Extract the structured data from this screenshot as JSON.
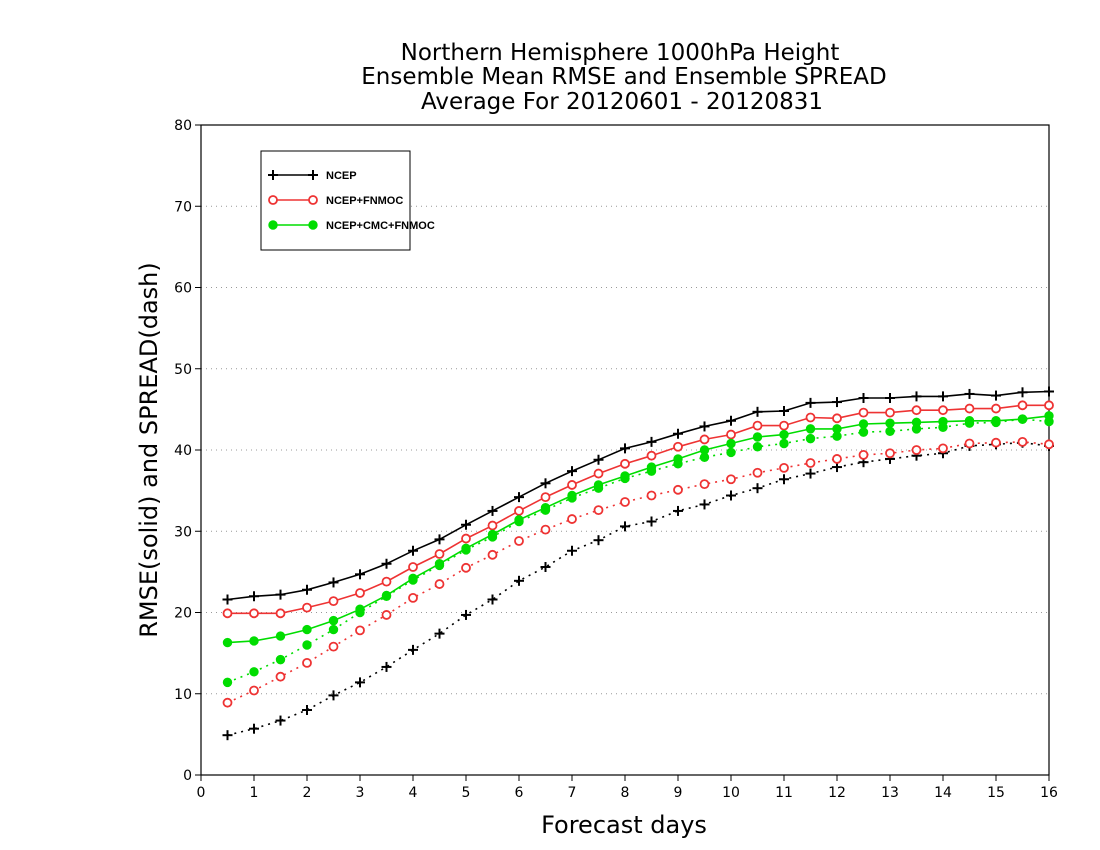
{
  "chart_data": {
    "type": "line",
    "title_lines": [
      "Northern Hemisphere 1000hPa Height",
      "Ensemble Mean RMSE and Ensemble SPREAD",
      "Average For 20120601 - 20120831"
    ],
    "xlabel": "Forecast days",
    "ylabel": "RMSE(solid) and SPREAD(dash)",
    "xlim": [
      0,
      16
    ],
    "ylim": [
      0,
      80
    ],
    "x_ticks": [
      "0",
      "1",
      "2",
      "3",
      "4",
      "5",
      "6",
      "7",
      "8",
      "9",
      "10",
      "11",
      "12",
      "13",
      "14",
      "15",
      "16"
    ],
    "y_ticks": [
      "0",
      "10",
      "20",
      "30",
      "40",
      "50",
      "60",
      "70",
      "80"
    ],
    "grid": "horizontal dotted",
    "legend_position": "top-left",
    "x": [
      0.5,
      1,
      1.5,
      2,
      2.5,
      3,
      3.5,
      4,
      4.5,
      5,
      5.5,
      6,
      6.5,
      7,
      7.5,
      8,
      8.5,
      9,
      9.5,
      10,
      10.5,
      11,
      11.5,
      12,
      12.5,
      13,
      13.5,
      14,
      14.5,
      15,
      15.5,
      16
    ],
    "series": [
      {
        "name": "NCEP",
        "color": "#000000",
        "marker": "plus",
        "rmse": [
          21.6,
          22.0,
          22.2,
          22.8,
          23.7,
          24.7,
          26.0,
          27.6,
          29.0,
          30.8,
          32.5,
          34.2,
          35.9,
          37.4,
          38.8,
          40.2,
          41.0,
          42.0,
          42.9,
          43.6,
          44.7,
          44.8,
          45.8,
          45.9,
          46.4,
          46.4,
          46.6,
          46.6,
          46.9,
          46.7,
          47.1,
          47.2
        ],
        "spread": [
          4.9,
          5.7,
          6.7,
          8.0,
          9.8,
          11.4,
          13.3,
          15.4,
          17.4,
          19.7,
          21.6,
          23.9,
          25.6,
          27.6,
          28.9,
          30.6,
          31.2,
          32.5,
          33.3,
          34.4,
          35.3,
          36.4,
          37.1,
          37.9,
          38.5,
          38.9,
          39.3,
          39.6,
          40.5,
          40.7,
          40.9,
          40.5
        ]
      },
      {
        "name": "NCEP+FNMOC",
        "color": "#ee3333",
        "marker": "open-circle",
        "rmse": [
          19.9,
          19.9,
          19.9,
          20.6,
          21.4,
          22.4,
          23.8,
          25.6,
          27.2,
          29.1,
          30.7,
          32.5,
          34.2,
          35.7,
          37.1,
          38.3,
          39.3,
          40.4,
          41.3,
          41.9,
          43.0,
          43.0,
          44.0,
          43.9,
          44.6,
          44.6,
          44.9,
          44.9,
          45.1,
          45.1,
          45.5,
          45.5
        ],
        "spread": [
          8.9,
          10.4,
          12.1,
          13.8,
          15.8,
          17.8,
          19.7,
          21.8,
          23.5,
          25.5,
          27.1,
          28.8,
          30.2,
          31.5,
          32.6,
          33.6,
          34.4,
          35.1,
          35.8,
          36.4,
          37.2,
          37.8,
          38.4,
          38.9,
          39.4,
          39.6,
          40.0,
          40.2,
          40.8,
          40.9,
          41.0,
          40.7
        ]
      },
      {
        "name": "NCEP+CMC+FNMOC",
        "color": "#00dd00",
        "marker": "filled-circle",
        "rmse": [
          16.3,
          16.5,
          17.1,
          17.9,
          19.0,
          20.4,
          22.1,
          24.2,
          26.0,
          27.9,
          29.6,
          31.4,
          32.9,
          34.4,
          35.7,
          36.8,
          37.9,
          38.9,
          40.0,
          40.8,
          41.6,
          41.9,
          42.6,
          42.6,
          43.2,
          43.3,
          43.4,
          43.5,
          43.6,
          43.6,
          43.8,
          44.2
        ],
        "spread": [
          11.4,
          12.7,
          14.2,
          16.0,
          17.9,
          20.0,
          22.0,
          24.0,
          25.8,
          27.7,
          29.3,
          31.2,
          32.6,
          34.1,
          35.3,
          36.5,
          37.4,
          38.3,
          39.1,
          39.7,
          40.4,
          40.8,
          41.4,
          41.7,
          42.2,
          42.3,
          42.6,
          42.8,
          43.3,
          43.4,
          43.8,
          43.5
        ]
      }
    ]
  }
}
